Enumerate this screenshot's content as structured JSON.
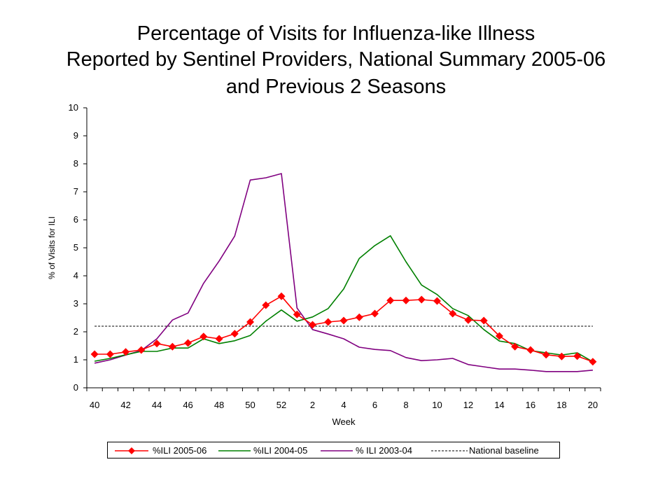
{
  "title_lines": [
    "Percentage of Visits for Influenza-like Illness",
    "Reported by Sentinel Providers, National Summary 2005-06",
    "and Previous 2 Seasons"
  ],
  "chart_data": {
    "type": "line",
    "xlabel": "Week",
    "ylabel": "% of Visits for ILI",
    "ylim": [
      0,
      10
    ],
    "yticks": [
      0,
      1,
      2,
      3,
      4,
      5,
      6,
      7,
      8,
      9,
      10
    ],
    "weeks": [
      40,
      41,
      42,
      43,
      44,
      45,
      46,
      47,
      48,
      49,
      50,
      51,
      52,
      1,
      2,
      3,
      4,
      5,
      6,
      7,
      8,
      9,
      10,
      11,
      12,
      13,
      14,
      15,
      16,
      17,
      18,
      19,
      20
    ],
    "xtick_labels": [
      "40",
      "42",
      "44",
      "46",
      "48",
      "50",
      "52",
      "2",
      "4",
      "6",
      "8",
      "10",
      "12",
      "14",
      "16",
      "18",
      "20"
    ],
    "grid": false,
    "legend_position": "bottom",
    "series": [
      {
        "name": "%ILI 2005-06",
        "color": "#ff0000",
        "marker": "diamond",
        "values": [
          1.2,
          1.2,
          1.28,
          1.35,
          1.58,
          1.47,
          1.6,
          1.83,
          1.75,
          1.93,
          2.35,
          2.95,
          3.27,
          2.62,
          2.25,
          2.35,
          2.4,
          2.52,
          2.65,
          3.12,
          3.12,
          3.15,
          3.1,
          2.65,
          2.42,
          2.4,
          1.85,
          1.47,
          1.35,
          1.18,
          1.12,
          1.13,
          0.93
        ]
      },
      {
        "name": "%ILI 2004-05",
        "color": "#008000",
        "marker": "none",
        "values": [
          0.95,
          1.05,
          1.18,
          1.3,
          1.3,
          1.42,
          1.42,
          1.75,
          1.58,
          1.68,
          1.87,
          2.38,
          2.78,
          2.38,
          2.53,
          2.83,
          3.53,
          4.62,
          5.08,
          5.43,
          4.5,
          3.67,
          3.33,
          2.83,
          2.58,
          2.08,
          1.67,
          1.58,
          1.33,
          1.25,
          1.17,
          1.25,
          0.93
        ]
      },
      {
        "name": "% ILI 2003-04",
        "color": "#800080",
        "marker": "none",
        "values": [
          0.88,
          1.0,
          1.17,
          1.33,
          1.75,
          2.42,
          2.67,
          3.73,
          4.53,
          5.42,
          7.42,
          7.5,
          7.65,
          2.85,
          2.08,
          1.92,
          1.75,
          1.45,
          1.37,
          1.33,
          1.08,
          0.97,
          1.0,
          1.05,
          0.83,
          0.75,
          0.67,
          0.67,
          0.63,
          0.58,
          0.58,
          0.58,
          0.63
        ]
      },
      {
        "name": "National baseline",
        "color": "#000000",
        "style": "dashed",
        "constant": 2.2
      }
    ]
  }
}
